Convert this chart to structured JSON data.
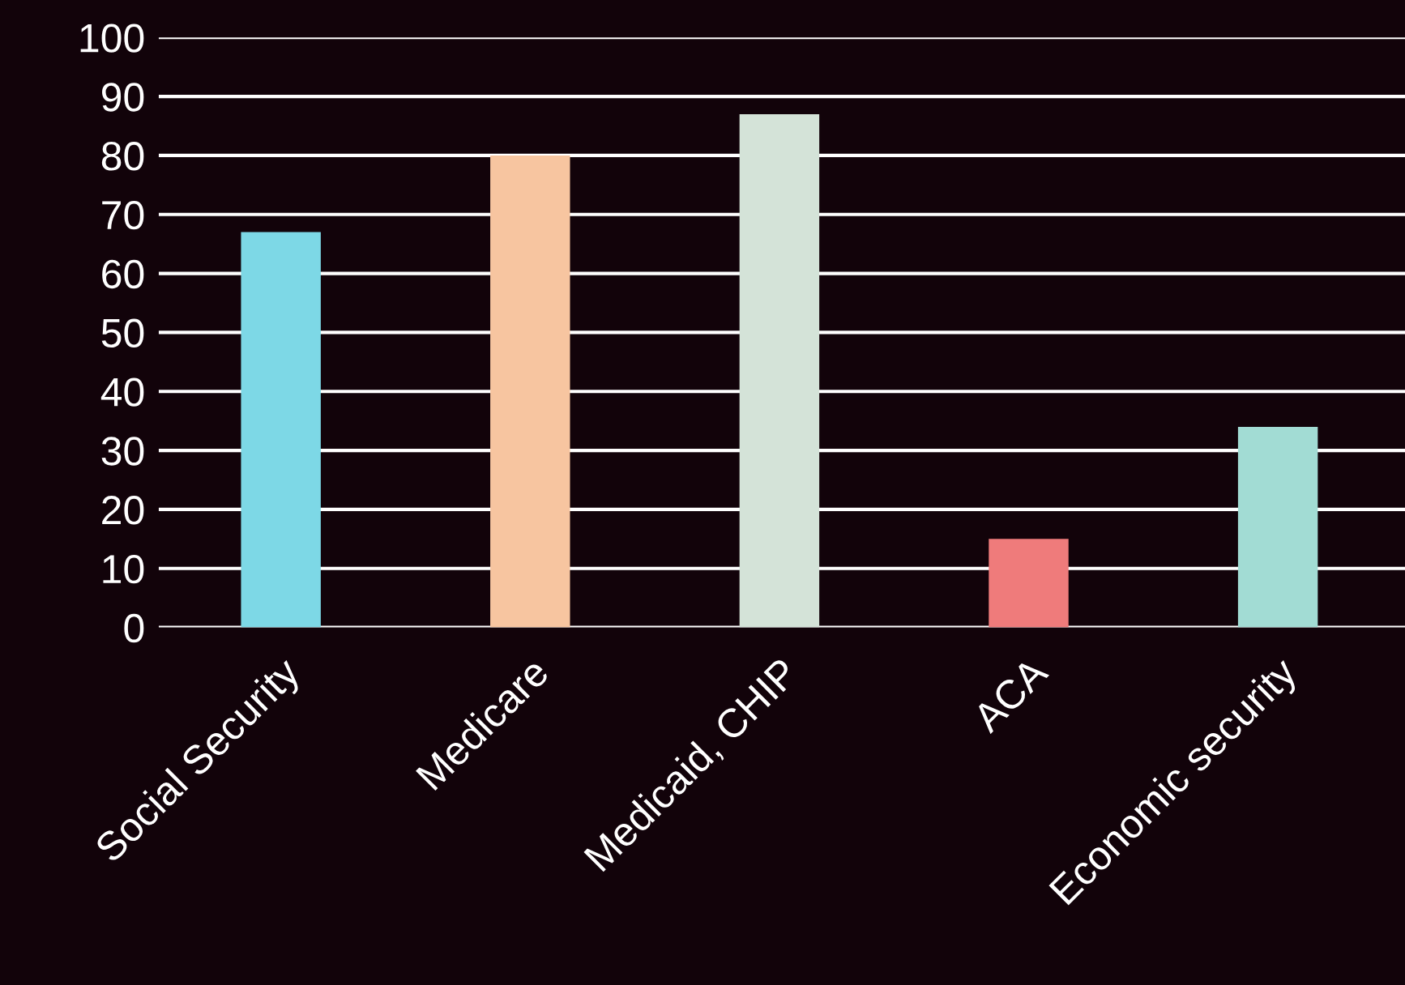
{
  "chart_data": {
    "type": "bar",
    "categories": [
      "Social Security",
      "Medicare",
      "Medicaid, CHIP",
      "ACA",
      "Economic security"
    ],
    "values": [
      67,
      80,
      87,
      15,
      34
    ],
    "colors": [
      "#7dd8e6",
      "#f7c5a0",
      "#d4e3d8",
      "#ef7b7b",
      "#a2dcd4"
    ],
    "ylim": [
      0,
      100
    ],
    "yticks": [
      0,
      10,
      20,
      30,
      40,
      50,
      60,
      70,
      80,
      90,
      100
    ],
    "grid": "y"
  }
}
